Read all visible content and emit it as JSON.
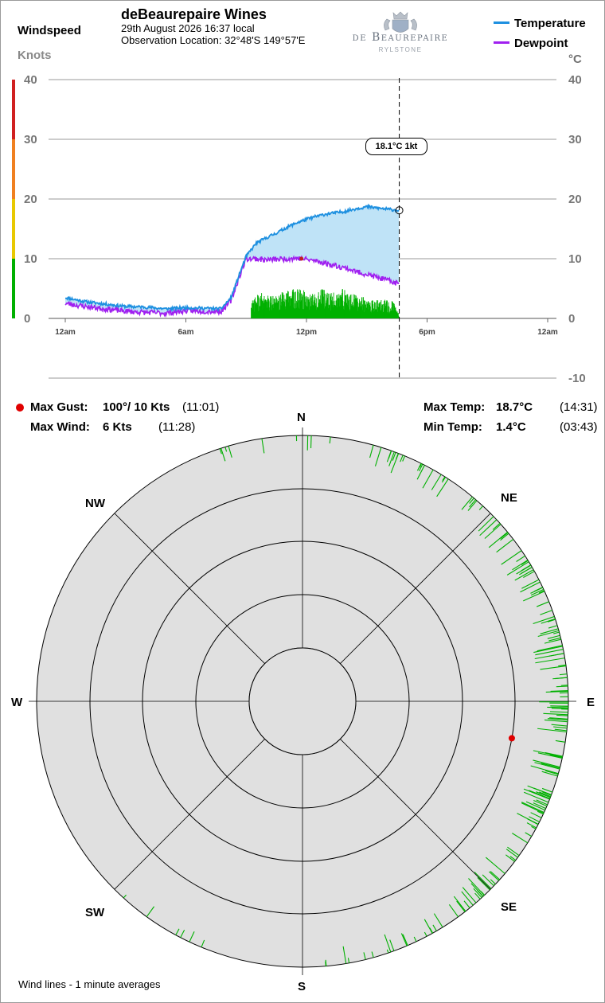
{
  "header": {
    "title": "deBeaurepaire Wines",
    "date_line": "29th August 2026  16:37 local",
    "location_line": "Observation Location: 32°48'S 149°57'E",
    "logo_main": "de Beaurepaire",
    "logo_sub": "RYLSTONE",
    "left_title": "Windspeed",
    "left_unit": "Knots",
    "right_unit": "°C"
  },
  "legend": [
    {
      "label": "Temperature",
      "color": "#1e90e0"
    },
    {
      "label": "Dewpoint",
      "color": "#a020f0"
    }
  ],
  "colors": {
    "temperature": "#1e90e0",
    "temp_fill": "#bfe3f7",
    "dewpoint": "#a020f0",
    "wind_bars": "#00b000",
    "gust_marker": "#e00000",
    "polar_bg": "#e0e0e0",
    "scale_bands": [
      "#00b000",
      "#e8c800",
      "#f08020",
      "#d02020"
    ]
  },
  "tooltip": {
    "text": "18.1°C  1kt"
  },
  "chart_data": {
    "type": "line",
    "x_ticks": [
      "12am",
      "6am",
      "12pm",
      "6pm",
      "12am"
    ],
    "y_left_ticks": [
      "0",
      "10",
      "20",
      "30",
      "40"
    ],
    "y_left_range": [
      0,
      40
    ],
    "y_right_ticks": [
      "-10",
      "0",
      "10",
      "20",
      "30",
      "40"
    ],
    "y_right_range": [
      -10,
      40
    ],
    "cursor_time": "16:37",
    "series": [
      {
        "name": "Temperature",
        "unit": "°C",
        "axis": "right",
        "times": [
          "00:00",
          "01:00",
          "02:00",
          "03:00",
          "04:00",
          "05:00",
          "06:00",
          "07:00",
          "07:45",
          "08:15",
          "08:45",
          "09:00",
          "09:30",
          "10:00",
          "10:30",
          "11:00",
          "11:30",
          "12:00",
          "12:30",
          "13:00",
          "13:30",
          "14:00",
          "14:30",
          "15:00",
          "15:30",
          "16:00",
          "16:37"
        ],
        "values": [
          3.5,
          2.8,
          2.4,
          2.0,
          1.9,
          1.6,
          1.8,
          1.7,
          1.6,
          3.5,
          8.2,
          10.4,
          12.6,
          13.5,
          14.3,
          15.2,
          16.0,
          16.6,
          17.1,
          17.5,
          17.7,
          18.0,
          18.4,
          18.7,
          18.5,
          18.3,
          18.1
        ]
      },
      {
        "name": "Dewpoint",
        "unit": "°C",
        "axis": "right",
        "times": [
          "00:00",
          "01:00",
          "02:00",
          "03:00",
          "04:00",
          "05:00",
          "06:00",
          "07:00",
          "07:45",
          "08:15",
          "08:45",
          "09:00",
          "09:30",
          "10:00",
          "10:30",
          "11:00",
          "11:30",
          "12:00",
          "12:30",
          "13:00",
          "13:30",
          "14:00",
          "14:30",
          "15:00",
          "15:30",
          "16:00",
          "16:37"
        ],
        "values": [
          2.5,
          2.0,
          1.6,
          1.2,
          1.0,
          0.9,
          1.3,
          1.2,
          1.2,
          3.0,
          7.8,
          10.0,
          10.0,
          9.8,
          9.9,
          10.0,
          10.1,
          9.9,
          9.6,
          9.2,
          8.8,
          8.4,
          7.8,
          7.4,
          6.9,
          6.4,
          5.8
        ]
      },
      {
        "name": "Wind speed (1 min avg)",
        "unit": "kt",
        "axis": "left",
        "times": [
          "09:15",
          "09:45",
          "10:15",
          "10:45",
          "11:15",
          "11:45",
          "12:15",
          "12:45",
          "13:15",
          "13:45",
          "14:15",
          "14:45",
          "15:15",
          "15:45",
          "16:15",
          "16:35"
        ],
        "values": [
          3,
          3.5,
          3,
          3.5,
          4,
          4,
          3.5,
          4,
          3.5,
          4,
          3.5,
          3,
          2.5,
          2.5,
          2.5,
          1
        ]
      }
    ]
  },
  "stats": {
    "max_gust": {
      "label": "Max Gust:",
      "value": "100°/ 10 Kts",
      "time": "(11:01)"
    },
    "max_wind": {
      "label": "Max Wind:",
      "value": "6 Kts",
      "time": "(11:28)"
    },
    "max_temp": {
      "label": "Max Temp:",
      "value": "18.7°C",
      "time": "(14:31)"
    },
    "min_temp": {
      "label": "Min Temp:",
      "value": "1.4°C",
      "time": "(03:43)"
    }
  },
  "compass": {
    "N": "N",
    "NE": "NE",
    "E": "E",
    "SE": "SE",
    "S": "S",
    "SW": "SW",
    "W": "W",
    "NW": "NW",
    "gust_direction_deg": 100,
    "wind_direction_bands": [
      {
        "from_deg": 335,
        "to_deg": 360,
        "weight": 0.15
      },
      {
        "from_deg": 0,
        "to_deg": 10,
        "weight": 0.2
      },
      {
        "from_deg": 15,
        "to_deg": 45,
        "weight": 0.5
      },
      {
        "from_deg": 45,
        "to_deg": 70,
        "weight": 0.7
      },
      {
        "from_deg": 70,
        "to_deg": 115,
        "weight": 1.0
      },
      {
        "from_deg": 115,
        "to_deg": 140,
        "weight": 0.7
      },
      {
        "from_deg": 140,
        "to_deg": 175,
        "weight": 0.4
      },
      {
        "from_deg": 200,
        "to_deg": 225,
        "weight": 0.15
      }
    ]
  },
  "footer": {
    "note": "Wind lines - 1 minute averages"
  }
}
